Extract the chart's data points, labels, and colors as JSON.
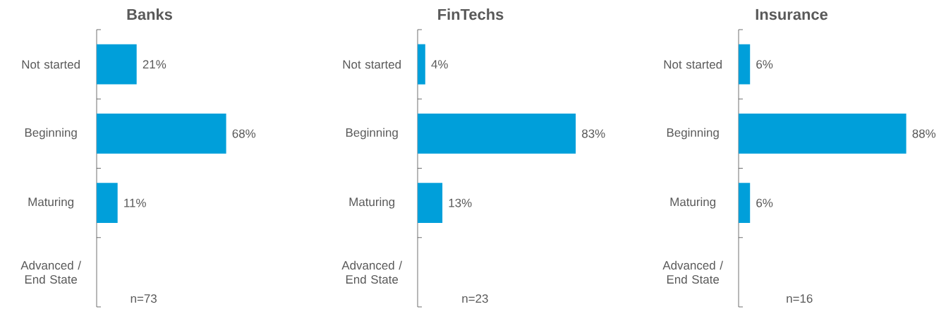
{
  "chart_data": [
    {
      "type": "bar",
      "orientation": "horizontal",
      "title": "Banks",
      "categories": [
        "Not started",
        "Beginning",
        "Maturing",
        "Advanced / End State"
      ],
      "values": [
        21,
        68,
        11,
        0
      ],
      "value_labels": [
        "21%",
        "68%",
        "11%",
        null
      ],
      "color": "#009fda",
      "tick_labels": "y",
      "annotations": [
        "n=73"
      ]
    },
    {
      "type": "bar",
      "orientation": "horizontal",
      "title": "FinTechs",
      "categories": [
        "Not started",
        "Beginning",
        "Maturing",
        "Advanced / End State"
      ],
      "values": [
        4,
        83,
        13,
        0
      ],
      "value_labels": [
        "4%",
        "83%",
        "13%",
        null
      ],
      "color": "#009fda",
      "tick_labels": "y",
      "annotations": [
        "n=23"
      ]
    },
    {
      "type": "bar",
      "orientation": "horizontal",
      "title": "Insurance",
      "categories": [
        "Not started",
        "Beginning",
        "Maturing",
        "Advanced / End State"
      ],
      "values": [
        6,
        88,
        6,
        0
      ],
      "value_labels": [
        "6%",
        "88%",
        "6%",
        null
      ],
      "color": "#009fda",
      "tick_labels": "y",
      "annotations": [
        "n=16"
      ]
    }
  ]
}
